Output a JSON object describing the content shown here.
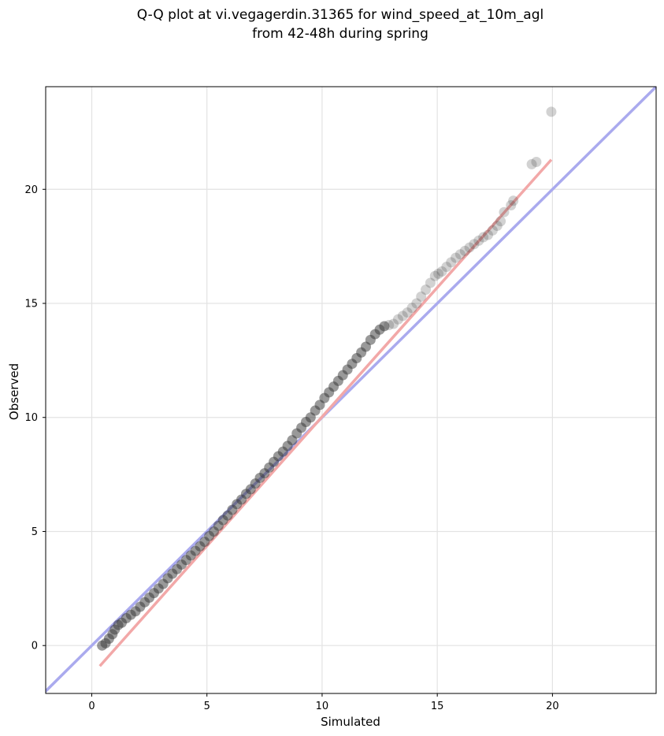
{
  "chart_data": {
    "type": "scatter",
    "title_lines": [
      "Q-Q plot at vi.vegagerdin.31365 for wind_speed_at_10m_agl",
      "from 42-48h during spring"
    ],
    "xlabel": "Simulated",
    "ylabel": "Observed",
    "xlim": [
      -2.0,
      24.5
    ],
    "ylim": [
      -2.1,
      24.5
    ],
    "xticks": [
      "0",
      "5",
      "10",
      "15",
      "20"
    ],
    "yticks": [
      "0",
      "5",
      "10",
      "15",
      "20"
    ],
    "grid": true,
    "legend": "none",
    "reference_line": {
      "name": "",
      "slope": 1,
      "intercept": 0,
      "color": "#aaaaee"
    },
    "fit_line": {
      "x": [
        0.35,
        19.95
      ],
      "y": [
        -0.9,
        21.3
      ],
      "color": "#f2a8a8"
    },
    "point_color": "#333333",
    "points": {
      "x": [
        0.45,
        0.6,
        0.75,
        0.9,
        1.0,
        1.15,
        1.3,
        1.5,
        1.7,
        1.9,
        2.1,
        2.3,
        2.5,
        2.7,
        2.9,
        3.1,
        3.3,
        3.5,
        3.7,
        3.9,
        4.1,
        4.3,
        4.5,
        4.7,
        4.9,
        5.1,
        5.3,
        5.5,
        5.7,
        5.9,
        6.1,
        6.3,
        6.5,
        6.7,
        6.9,
        7.1,
        7.3,
        7.5,
        7.7,
        7.9,
        8.1,
        8.3,
        8.5,
        8.7,
        8.9,
        9.1,
        9.3,
        9.5,
        9.7,
        9.9,
        10.1,
        10.3,
        10.5,
        10.7,
        10.9,
        11.1,
        11.3,
        11.5,
        11.7,
        11.9,
        12.1,
        12.3,
        12.5,
        12.7,
        12.9,
        13.1,
        13.3,
        13.5,
        13.7,
        13.9,
        14.1,
        14.3,
        14.5,
        14.7,
        14.9,
        15.05,
        15.2,
        15.4,
        15.6,
        15.8,
        16.0,
        16.2,
        16.4,
        16.6,
        16.8,
        17.0,
        17.2,
        17.4,
        17.6,
        17.75,
        17.9,
        18.2,
        18.3,
        19.1,
        19.3,
        19.95
      ],
      "y": [
        0.0,
        0.1,
        0.3,
        0.5,
        0.7,
        0.9,
        1.0,
        1.2,
        1.35,
        1.5,
        1.7,
        1.9,
        2.1,
        2.3,
        2.5,
        2.7,
        2.95,
        3.15,
        3.35,
        3.55,
        3.75,
        3.95,
        4.15,
        4.35,
        4.55,
        4.8,
        5.0,
        5.25,
        5.5,
        5.7,
        5.95,
        6.2,
        6.4,
        6.65,
        6.85,
        7.1,
        7.35,
        7.55,
        7.8,
        8.05,
        8.3,
        8.5,
        8.75,
        9.0,
        9.3,
        9.55,
        9.8,
        10.0,
        10.3,
        10.55,
        10.85,
        11.1,
        11.35,
        11.6,
        11.85,
        12.1,
        12.35,
        12.6,
        12.85,
        13.1,
        13.4,
        13.65,
        13.85,
        14.0,
        14.05,
        14.1,
        14.3,
        14.45,
        14.6,
        14.8,
        15.0,
        15.3,
        15.6,
        15.9,
        16.2,
        16.3,
        16.4,
        16.6,
        16.8,
        17.0,
        17.15,
        17.3,
        17.45,
        17.6,
        17.75,
        17.9,
        18.0,
        18.2,
        18.4,
        18.6,
        19.0,
        19.3,
        19.5,
        21.1,
        21.2,
        23.4
      ]
    }
  }
}
